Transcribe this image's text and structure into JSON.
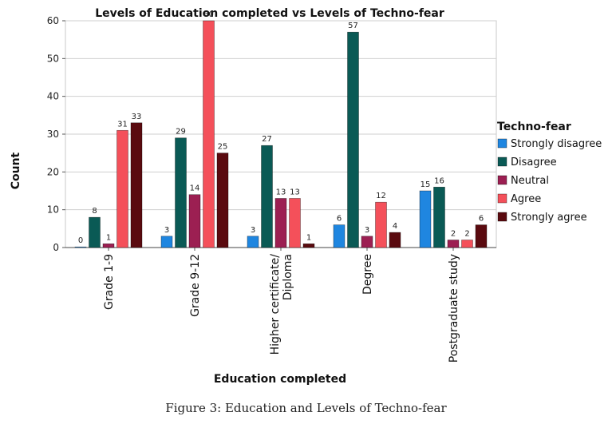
{
  "chart_data": {
    "type": "bar",
    "title": "Levels of Education completed vs Levels of Techno-fear",
    "xlabel": "Education completed",
    "ylabel": "Count",
    "ylim": [
      0,
      60
    ],
    "yticks": [
      0,
      10,
      20,
      30,
      40,
      50,
      60
    ],
    "grid": true,
    "legend_title": "Techno-fear",
    "legend_position": "right",
    "categories": [
      [
        "Grade 1-9"
      ],
      [
        "Grade 9-12"
      ],
      [
        "Higher certificate/",
        "Diploma"
      ],
      [
        "Degree"
      ],
      [
        "Postgraduate study"
      ]
    ],
    "series": [
      {
        "name": "Strongly disagree",
        "color": "#1f86e0",
        "values": [
          0,
          3,
          3,
          6,
          15
        ]
      },
      {
        "name": "Disagree",
        "color": "#0a5a55",
        "values": [
          8,
          29,
          27,
          57,
          16
        ]
      },
      {
        "name": "Neutral",
        "color": "#9c1f52",
        "values": [
          1,
          14,
          13,
          3,
          2
        ]
      },
      {
        "name": "Agree",
        "color": "#f4505a",
        "values": [
          31,
          60,
          13,
          12,
          2
        ]
      },
      {
        "name": "Strongly agree",
        "color": "#5a0a0f",
        "values": [
          33,
          25,
          1,
          4,
          6
        ]
      }
    ]
  },
  "caption": "Figure 3: Education and Levels of Techno-fear"
}
